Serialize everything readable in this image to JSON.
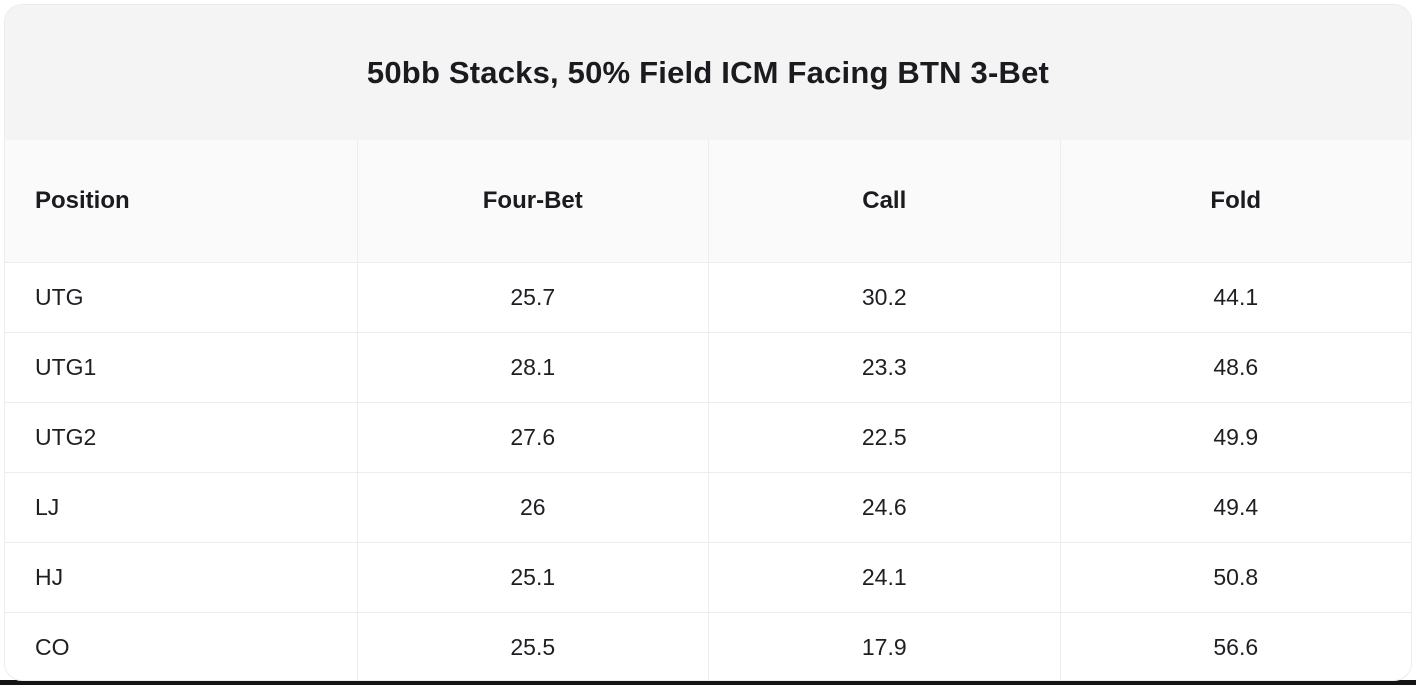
{
  "title": "50bb Stacks, 50% Field ICM Facing BTN 3-Bet",
  "table": {
    "columns": {
      "position": "Position",
      "four_bet": "Four-Bet",
      "call": "Call",
      "fold": "Fold"
    },
    "rows": [
      {
        "position": "UTG",
        "four_bet": "25.7",
        "call": "30.2",
        "fold": "44.1"
      },
      {
        "position": "UTG1",
        "four_bet": "28.1",
        "call": "23.3",
        "fold": "48.6"
      },
      {
        "position": "UTG2",
        "four_bet": "27.6",
        "call": "22.5",
        "fold": "49.9"
      },
      {
        "position": "LJ",
        "four_bet": "26",
        "call": "24.6",
        "fold": "49.4"
      },
      {
        "position": "HJ",
        "four_bet": "25.1",
        "call": "24.1",
        "fold": "50.8"
      },
      {
        "position": "CO",
        "four_bet": "25.5",
        "call": "17.9",
        "fold": "56.6"
      }
    ]
  },
  "chart_data": {
    "type": "table",
    "title": "50bb Stacks, 50% Field ICM Facing BTN 3-Bet",
    "columns": [
      "Position",
      "Four-Bet",
      "Call",
      "Fold"
    ],
    "rows": [
      [
        "UTG",
        25.7,
        30.2,
        44.1
      ],
      [
        "UTG1",
        28.1,
        23.3,
        48.6
      ],
      [
        "UTG2",
        27.6,
        22.5,
        49.9
      ],
      [
        "LJ",
        26,
        24.6,
        49.4
      ],
      [
        "HJ",
        25.1,
        24.1,
        50.8
      ],
      [
        "CO",
        25.5,
        17.9,
        56.6
      ]
    ]
  },
  "colors": {
    "title_band_bg": "#f4f4f5",
    "header_row_bg": "#fafafa",
    "row_bg": "#ffffff",
    "border": "#ededef",
    "text": "#1f1f23",
    "bottom_edge": "#141414"
  }
}
